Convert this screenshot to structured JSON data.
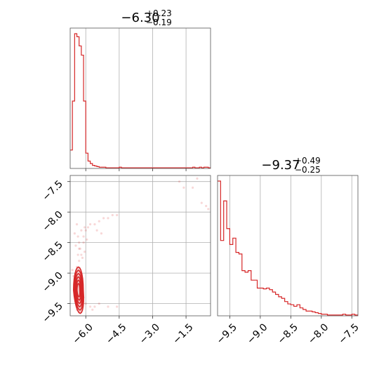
{
  "chart_data": [
    {
      "panel": "marginal-param-1",
      "type": "histogram",
      "title": {
        "median": "−6.30",
        "plus": "+0.23",
        "minus": "−0.19"
      },
      "xlim": [
        -6.7,
        -0.4
      ],
      "x_ticks": [
        -6.0,
        -4.5,
        -3.0,
        -1.5
      ],
      "grid": true,
      "bin_edges": [
        -6.7,
        -6.6,
        -6.5,
        -6.4,
        -6.3,
        -6.2,
        -6.1,
        -6.0,
        -5.9,
        -5.8,
        -5.7,
        -5.6,
        -5.5,
        -5.4,
        -5.3,
        -5.2,
        -5.1,
        -5.0,
        -4.9,
        -4.8,
        -4.7,
        -4.6,
        -4.5,
        -4.4,
        -4.3,
        -4.2,
        -4.1,
        -4.0,
        -3.9,
        -3.8,
        -3.7,
        -3.6,
        -3.5,
        -3.4,
        -3.3,
        -3.2,
        -3.1,
        -3.0,
        -2.9,
        -2.8,
        -2.7,
        -2.6,
        -2.5,
        -2.4,
        -2.3,
        -2.2,
        -2.1,
        -2.0,
        -1.9,
        -1.8,
        -1.7,
        -1.6,
        -1.5,
        -1.4,
        -1.3,
        -1.2,
        -1.1,
        -1.0,
        -0.9,
        -0.8,
        -0.7,
        -0.6,
        -0.5,
        -0.4
      ],
      "counts": [
        30,
        110,
        220,
        215,
        200,
        185,
        110,
        25,
        12,
        8,
        5,
        4,
        3,
        2,
        2,
        2,
        1,
        1,
        1,
        1,
        1,
        1,
        2,
        1,
        1,
        1,
        1,
        1,
        1,
        1,
        1,
        1,
        1,
        1,
        1,
        1,
        1,
        1,
        1,
        1,
        1,
        1,
        1,
        1,
        1,
        1,
        1,
        1,
        1,
        1,
        1,
        1,
        1,
        1,
        1,
        2,
        1,
        1,
        2,
        1,
        2,
        2,
        1
      ]
    },
    {
      "panel": "joint-2d",
      "type": "scatter",
      "xlim": [
        -6.7,
        -0.4
      ],
      "ylim": [
        -9.7,
        -7.4
      ],
      "x_ticks": [
        -6.0,
        -4.5,
        -3.0,
        -1.5
      ],
      "y_ticks": [
        -7.5,
        -8.0,
        -8.5,
        -9.0,
        -9.5
      ],
      "grid": true,
      "points": [
        [
          -6.4,
          -8.9
        ],
        [
          -6.3,
          -8.8
        ],
        [
          -6.2,
          -8.7
        ],
        [
          -6.3,
          -8.6
        ],
        [
          -6.1,
          -8.5
        ],
        [
          -6.35,
          -8.4
        ],
        [
          -6.0,
          -8.3
        ],
        [
          -5.9,
          -8.25
        ],
        [
          -5.8,
          -8.2
        ],
        [
          -5.6,
          -8.2
        ],
        [
          -5.4,
          -8.15
        ],
        [
          -5.2,
          -8.1
        ],
        [
          -5.0,
          -8.1
        ],
        [
          -4.8,
          -8.05
        ],
        [
          -4.6,
          -8.05
        ],
        [
          -6.3,
          -8.5
        ],
        [
          -6.2,
          -8.3
        ],
        [
          -6.4,
          -8.2
        ],
        [
          -6.1,
          -8.4
        ],
        [
          -6.25,
          -8.6
        ],
        [
          -6.35,
          -8.7
        ],
        [
          -6.45,
          -8.55
        ],
        [
          -6.15,
          -8.75
        ],
        [
          -6.05,
          -8.65
        ],
        [
          -5.95,
          -8.45
        ],
        [
          -6.5,
          -8.35
        ],
        [
          -6.2,
          -9.2
        ],
        [
          -6.3,
          -9.3
        ],
        [
          -6.1,
          -9.4
        ],
        [
          -6.0,
          -9.5
        ],
        [
          -5.8,
          -9.55
        ],
        [
          -5.6,
          -9.55
        ],
        [
          -5.4,
          -9.5
        ],
        [
          -5.0,
          -9.55
        ],
        [
          -4.6,
          -9.55
        ],
        [
          -5.7,
          -9.6
        ],
        [
          -6.4,
          -9.6
        ],
        [
          -6.5,
          -9.1
        ],
        [
          -1.6,
          -7.6
        ],
        [
          -1.2,
          -7.6
        ],
        [
          -0.8,
          -7.85
        ],
        [
          -0.6,
          -7.9
        ],
        [
          -0.5,
          -7.95
        ],
        [
          -1.0,
          -7.45
        ],
        [
          -1.8,
          -7.5
        ],
        [
          -6.6,
          -8.95
        ],
        [
          -6.55,
          -9.05
        ],
        [
          -6.05,
          -8.25
        ],
        [
          -5.5,
          -8.3
        ],
        [
          -5.3,
          -8.35
        ]
      ],
      "contour_levels": 6
    },
    {
      "panel": "marginal-param-2",
      "type": "histogram",
      "title": {
        "median": "−9.37",
        "plus": "+0.49",
        "minus": "−0.25"
      },
      "xlim": [
        -9.7,
        -7.4
      ],
      "x_ticks": [
        -9.5,
        -9.0,
        -8.5,
        -8.0,
        -7.5
      ],
      "grid": true,
      "bin_edges": [
        -9.7,
        -9.65,
        -9.6,
        -9.55,
        -9.5,
        -9.45,
        -9.4,
        -9.35,
        -9.3,
        -9.25,
        -9.2,
        -9.15,
        -9.1,
        -9.05,
        -9.0,
        -8.95,
        -8.9,
        -8.85,
        -8.8,
        -8.75,
        -8.7,
        -8.65,
        -8.6,
        -8.55,
        -8.5,
        -8.45,
        -8.4,
        -8.35,
        -8.3,
        -8.25,
        -8.2,
        -8.15,
        -8.1,
        -8.05,
        -8.0,
        -7.95,
        -7.9,
        -7.85,
        -7.8,
        -7.75,
        -7.7,
        -7.65,
        -7.6,
        -7.55,
        -7.5,
        -7.45,
        -7.4
      ],
      "counts": [
        170,
        95,
        145,
        110,
        90,
        98,
        80,
        78,
        57,
        55,
        57,
        45,
        45,
        35,
        35,
        34,
        35,
        33,
        30,
        27,
        24,
        22,
        18,
        15,
        14,
        12,
        14,
        10,
        8,
        6,
        6,
        5,
        4,
        3,
        2,
        2,
        1,
        1,
        1,
        1,
        1,
        2,
        1,
        1,
        2,
        1
      ]
    }
  ]
}
